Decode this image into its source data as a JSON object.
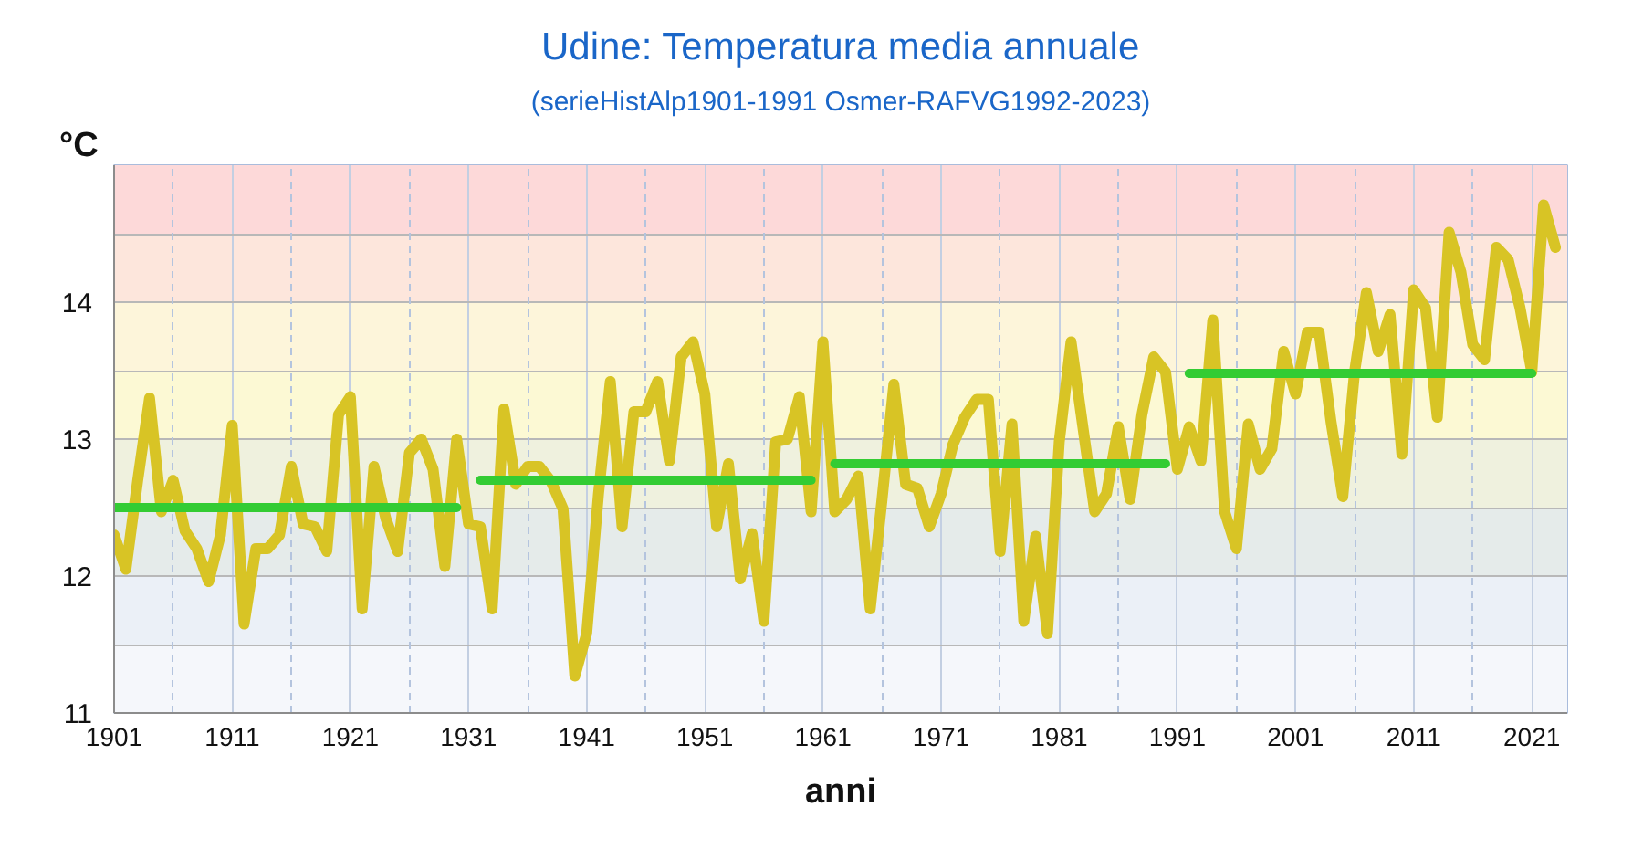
{
  "chart_data": {
    "type": "line",
    "title": "Udine: Temperatura media annuale",
    "subtitle": "(serieHistAlp1901-1991 Osmer-RAFVG1992-2023)",
    "xlabel": "anni",
    "ylabel": "°C",
    "x": [
      1901,
      1902,
      1903,
      1904,
      1905,
      1906,
      1907,
      1908,
      1909,
      1910,
      1911,
      1912,
      1913,
      1914,
      1915,
      1916,
      1917,
      1918,
      1919,
      1920,
      1921,
      1922,
      1923,
      1924,
      1925,
      1926,
      1927,
      1928,
      1929,
      1930,
      1931,
      1932,
      1933,
      1934,
      1935,
      1936,
      1937,
      1938,
      1939,
      1940,
      1941,
      1942,
      1943,
      1944,
      1945,
      1946,
      1947,
      1948,
      1949,
      1950,
      1951,
      1952,
      1953,
      1954,
      1955,
      1956,
      1957,
      1958,
      1959,
      1960,
      1961,
      1962,
      1963,
      1964,
      1965,
      1966,
      1967,
      1968,
      1969,
      1970,
      1971,
      1972,
      1973,
      1974,
      1975,
      1976,
      1977,
      1978,
      1979,
      1980,
      1981,
      1982,
      1983,
      1984,
      1985,
      1986,
      1987,
      1988,
      1989,
      1990,
      1991,
      1992,
      1993,
      1994,
      1995,
      1996,
      1997,
      1998,
      1999,
      2000,
      2001,
      2002,
      2003,
      2004,
      2005,
      2006,
      2007,
      2008,
      2009,
      2010,
      2011,
      2012,
      2013,
      2014,
      2015,
      2016,
      2017,
      2018,
      2019,
      2020,
      2021,
      2022,
      2023
    ],
    "series": [
      {
        "color": "#d8c425",
        "values": [
          12.3,
          12.05,
          12.7,
          13.3,
          12.47,
          12.7,
          12.33,
          12.2,
          11.96,
          12.3,
          13.1,
          11.65,
          12.2,
          12.2,
          12.3,
          12.8,
          12.38,
          12.36,
          12.18,
          13.18,
          13.31,
          11.76,
          12.8,
          12.42,
          12.18,
          12.9,
          13.0,
          12.78,
          12.07,
          13.0,
          12.38,
          12.36,
          11.76,
          13.22,
          12.67,
          12.8,
          12.8,
          12.69,
          12.49,
          11.27,
          11.58,
          12.6,
          13.42,
          12.36,
          13.2,
          13.2,
          13.42,
          12.84,
          13.6,
          13.71,
          13.33,
          12.36,
          12.82,
          11.98,
          12.31,
          11.67,
          12.98,
          13.0,
          13.31,
          12.47,
          13.71,
          12.47,
          12.56,
          12.73,
          11.76,
          12.56,
          13.4,
          12.67,
          12.64,
          12.36,
          12.6,
          12.96,
          13.16,
          13.29,
          13.29,
          12.18,
          13.11,
          11.67,
          12.29,
          11.58,
          12.98,
          13.71,
          13.09,
          12.47,
          12.6,
          13.09,
          12.56,
          13.18,
          13.6,
          13.49,
          12.78,
          13.09,
          12.84,
          13.87,
          12.47,
          12.2,
          13.11,
          12.78,
          12.93,
          13.64,
          13.33,
          13.78,
          13.78,
          13.13,
          12.58,
          13.49,
          14.07,
          13.64,
          13.91,
          12.89,
          14.09,
          13.96,
          13.16,
          14.51,
          14.22,
          13.69,
          13.58,
          14.4,
          14.31,
          13.96,
          13.49,
          14.71,
          14.4
        ]
      },
      {
        "type": "line",
        "color": "#33cc33",
        "x": [
          1901,
          1930
        ],
        "values": [
          12.5,
          12.5
        ]
      },
      {
        "type": "line",
        "color": "#33cc33",
        "x": [
          1932,
          1960
        ],
        "values": [
          12.7,
          12.7
        ]
      },
      {
        "type": "line",
        "color": "#33cc33",
        "x": [
          1962,
          1990
        ],
        "values": [
          12.82,
          12.82
        ]
      },
      {
        "type": "line",
        "color": "#33cc33",
        "x": [
          1992,
          2021
        ],
        "values": [
          13.48,
          13.48
        ]
      }
    ],
    "xlim": [
      1901,
      2024
    ],
    "ylim": [
      11,
      15
    ],
    "xticks": [
      1901,
      {
        "value": 1906,
        "label": null
      },
      1911,
      {
        "value": 1916,
        "label": null
      },
      1921,
      {
        "value": 1926,
        "label": null
      },
      1931,
      {
        "value": 1936,
        "label": null
      },
      1941,
      {
        "value": 1946,
        "label": null
      },
      1951,
      {
        "value": 1956,
        "label": null
      },
      1961,
      {
        "value": 1966,
        "label": null
      },
      1971,
      {
        "value": 1976,
        "label": null
      },
      1981,
      {
        "value": 1986,
        "label": null
      },
      1991,
      {
        "value": 1996,
        "label": null
      },
      2001,
      {
        "value": 2006,
        "label": null
      },
      2011,
      {
        "value": 2016,
        "label": null
      },
      2021
    ],
    "yticks": [
      11,
      {
        "value": 11.5,
        "label": null
      },
      12,
      {
        "value": 12.5,
        "label": null
      },
      13,
      {
        "value": 13.5,
        "label": null
      },
      14,
      {
        "value": 14.5,
        "label": null
      }
    ],
    "grid": true,
    "bands": [
      {
        "axis": "y",
        "from": 14.5,
        "to": 15,
        "color": "#fdd9d9"
      },
      {
        "axis": "y",
        "from": 14,
        "to": 14.5,
        "color": "#fde6dc"
      },
      {
        "axis": "y",
        "from": 13.5,
        "to": 14,
        "color": "#fdf5da"
      },
      {
        "axis": "y",
        "from": 13,
        "to": 13.5,
        "color": "#fcf9d4"
      },
      {
        "axis": "y",
        "from": 12.5,
        "to": 13,
        "color": "#eff1de"
      },
      {
        "axis": "y",
        "from": 12,
        "to": 12.5,
        "color": "#e5ebea"
      },
      {
        "axis": "y",
        "from": 11.5,
        "to": 12,
        "color": "#ebf0f7"
      },
      {
        "axis": "y",
        "from": 11,
        "to": 11.5,
        "color": "#f5f7fb"
      }
    ]
  }
}
